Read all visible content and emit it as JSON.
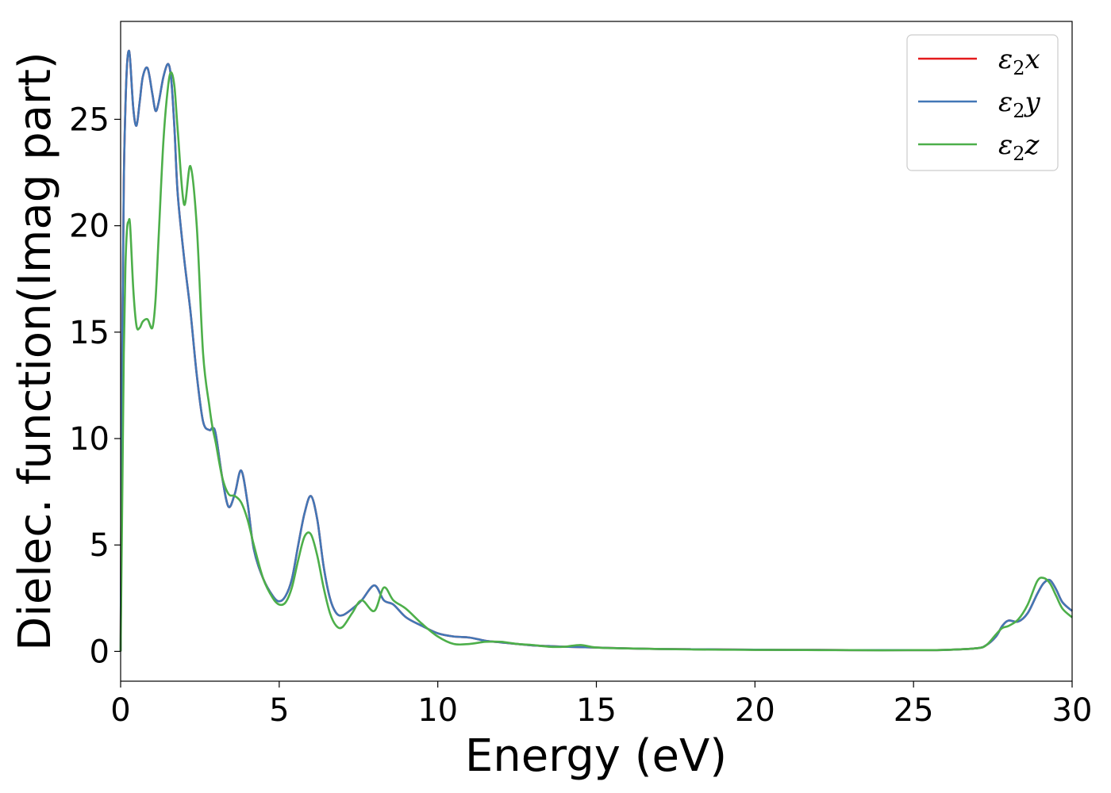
{
  "chart_data": {
    "type": "line",
    "xlabel": "Energy (eV)",
    "ylabel": "Dielec. function(Imag part)",
    "xlim": [
      0,
      30
    ],
    "ylim": [
      -1.4,
      29.6
    ],
    "xticks": [
      0,
      5,
      10,
      15,
      20,
      25,
      30
    ],
    "yticks": [
      0,
      5,
      10,
      15,
      20,
      25
    ],
    "grid": false,
    "legend_position": "top-right",
    "series": [
      {
        "name": "ε2x",
        "legend_sub_base": "ε",
        "legend_sub": "2",
        "legend_suffix": "x",
        "color": "#e41a1c",
        "x": [
          0,
          0.05,
          0.1,
          0.15,
          0.2,
          0.25,
          0.3,
          0.4,
          0.5,
          0.6,
          0.7,
          0.85,
          1.0,
          1.1,
          1.2,
          1.35,
          1.5,
          1.6,
          1.7,
          1.8,
          2.0,
          2.2,
          2.4,
          2.6,
          2.8,
          2.9,
          3.0,
          3.2,
          3.4,
          3.6,
          3.8,
          4.0,
          4.2,
          4.5,
          4.8,
          5.0,
          5.2,
          5.4,
          5.6,
          5.8,
          6.0,
          6.2,
          6.4,
          6.6,
          6.8,
          7.0,
          7.3,
          7.6,
          8.0,
          8.3,
          8.6,
          9.0,
          9.5,
          10.0,
          10.5,
          11.0,
          11.5,
          12.0,
          12.5,
          13.0,
          13.5,
          14.0,
          14.5,
          15.0,
          16.0,
          17.0,
          18.0,
          19.0,
          20.0,
          21.0,
          22.0,
          23.0,
          24.0,
          25.0,
          26.0,
          27.0,
          27.3,
          27.6,
          27.8,
          28.0,
          28.3,
          28.6,
          28.9,
          29.1,
          29.3,
          29.5,
          29.7,
          30.0
        ],
        "y": [
          0,
          14,
          22,
          25.5,
          27.5,
          28.2,
          27.8,
          25.5,
          24.7,
          25.8,
          27.0,
          27.4,
          26.2,
          25.4,
          25.8,
          27.0,
          27.6,
          26.8,
          24.5,
          21.5,
          18.5,
          16.0,
          13.0,
          10.8,
          10.4,
          10.5,
          10.2,
          8.2,
          6.8,
          7.4,
          8.5,
          7.0,
          4.8,
          3.4,
          2.6,
          2.35,
          2.6,
          3.4,
          5.0,
          6.5,
          7.3,
          6.2,
          4.0,
          2.5,
          1.8,
          1.7,
          2.0,
          2.4,
          3.1,
          2.4,
          2.2,
          1.6,
          1.2,
          0.85,
          0.7,
          0.65,
          0.5,
          0.42,
          0.35,
          0.28,
          0.25,
          0.22,
          0.2,
          0.18,
          0.14,
          0.11,
          0.1,
          0.09,
          0.08,
          0.07,
          0.07,
          0.06,
          0.06,
          0.06,
          0.07,
          0.15,
          0.3,
          0.7,
          1.2,
          1.45,
          1.4,
          1.8,
          2.7,
          3.2,
          3.35,
          2.9,
          2.3,
          1.9
        ]
      },
      {
        "name": "ε2y",
        "legend_sub_base": "ε",
        "legend_sub": "2",
        "legend_suffix": "y",
        "color": "#4277b6",
        "x": [
          0,
          0.05,
          0.1,
          0.15,
          0.2,
          0.25,
          0.3,
          0.4,
          0.5,
          0.6,
          0.7,
          0.85,
          1.0,
          1.1,
          1.2,
          1.35,
          1.5,
          1.6,
          1.7,
          1.8,
          2.0,
          2.2,
          2.4,
          2.6,
          2.8,
          2.9,
          3.0,
          3.2,
          3.4,
          3.6,
          3.8,
          4.0,
          4.2,
          4.5,
          4.8,
          5.0,
          5.2,
          5.4,
          5.6,
          5.8,
          6.0,
          6.2,
          6.4,
          6.6,
          6.8,
          7.0,
          7.3,
          7.6,
          8.0,
          8.3,
          8.6,
          9.0,
          9.5,
          10.0,
          10.5,
          11.0,
          11.5,
          12.0,
          12.5,
          13.0,
          13.5,
          14.0,
          14.5,
          15.0,
          16.0,
          17.0,
          18.0,
          19.0,
          20.0,
          21.0,
          22.0,
          23.0,
          24.0,
          25.0,
          26.0,
          27.0,
          27.3,
          27.6,
          27.8,
          28.0,
          28.3,
          28.6,
          28.9,
          29.1,
          29.3,
          29.5,
          29.7,
          30.0
        ],
        "y": [
          0,
          14,
          22,
          25.5,
          27.5,
          28.2,
          27.8,
          25.5,
          24.7,
          25.8,
          27.0,
          27.4,
          26.2,
          25.4,
          25.8,
          27.0,
          27.6,
          26.8,
          24.5,
          21.5,
          18.5,
          16.0,
          13.0,
          10.8,
          10.4,
          10.5,
          10.2,
          8.2,
          6.8,
          7.4,
          8.5,
          7.0,
          4.8,
          3.4,
          2.6,
          2.35,
          2.6,
          3.4,
          5.0,
          6.5,
          7.3,
          6.2,
          4.0,
          2.5,
          1.8,
          1.7,
          2.0,
          2.4,
          3.1,
          2.4,
          2.2,
          1.6,
          1.2,
          0.85,
          0.7,
          0.65,
          0.5,
          0.42,
          0.35,
          0.28,
          0.25,
          0.22,
          0.2,
          0.18,
          0.14,
          0.11,
          0.1,
          0.09,
          0.08,
          0.07,
          0.07,
          0.06,
          0.06,
          0.06,
          0.07,
          0.15,
          0.3,
          0.7,
          1.2,
          1.45,
          1.4,
          1.8,
          2.7,
          3.2,
          3.35,
          2.9,
          2.3,
          1.9
        ]
      },
      {
        "name": "ε2z",
        "legend_sub_base": "ε",
        "legend_sub": "2",
        "legend_suffix": "z",
        "color": "#4daf4a",
        "x": [
          0,
          0.05,
          0.1,
          0.15,
          0.2,
          0.25,
          0.3,
          0.4,
          0.5,
          0.6,
          0.7,
          0.85,
          1.0,
          1.1,
          1.2,
          1.35,
          1.5,
          1.6,
          1.7,
          1.8,
          2.0,
          2.2,
          2.4,
          2.6,
          2.8,
          2.9,
          3.0,
          3.2,
          3.4,
          3.6,
          3.8,
          4.0,
          4.2,
          4.5,
          4.8,
          5.0,
          5.2,
          5.4,
          5.6,
          5.8,
          6.0,
          6.2,
          6.4,
          6.6,
          6.8,
          7.0,
          7.3,
          7.6,
          8.0,
          8.3,
          8.6,
          9.0,
          9.5,
          10.0,
          10.5,
          11.0,
          11.5,
          12.0,
          12.5,
          13.0,
          13.5,
          14.0,
          14.5,
          15.0,
          16.0,
          17.0,
          18.0,
          19.0,
          20.0,
          21.0,
          22.0,
          23.0,
          24.0,
          25.0,
          26.0,
          27.0,
          27.3,
          27.6,
          27.8,
          28.0,
          28.3,
          28.6,
          28.9,
          29.1,
          29.3,
          29.5,
          29.7,
          30.0
        ],
        "y": [
          0,
          7,
          14,
          18,
          19.8,
          20.2,
          20.0,
          17.0,
          15.3,
          15.2,
          15.5,
          15.6,
          15.2,
          16.5,
          19.5,
          24.0,
          26.6,
          27.2,
          26.5,
          24.5,
          21.0,
          22.8,
          20.0,
          14.0,
          11.5,
          10.5,
          9.8,
          8.2,
          7.4,
          7.3,
          7.0,
          6.2,
          5.0,
          3.4,
          2.5,
          2.2,
          2.3,
          3.0,
          4.3,
          5.4,
          5.5,
          4.5,
          3.0,
          1.8,
          1.2,
          1.15,
          1.8,
          2.4,
          1.9,
          3.0,
          2.4,
          2.0,
          1.3,
          0.7,
          0.35,
          0.35,
          0.45,
          0.45,
          0.35,
          0.3,
          0.22,
          0.22,
          0.3,
          0.18,
          0.14,
          0.11,
          0.09,
          0.08,
          0.07,
          0.07,
          0.06,
          0.06,
          0.05,
          0.06,
          0.07,
          0.15,
          0.3,
          0.8,
          1.1,
          1.2,
          1.5,
          2.2,
          3.3,
          3.45,
          3.2,
          2.6,
          2.0,
          1.6
        ]
      }
    ]
  }
}
